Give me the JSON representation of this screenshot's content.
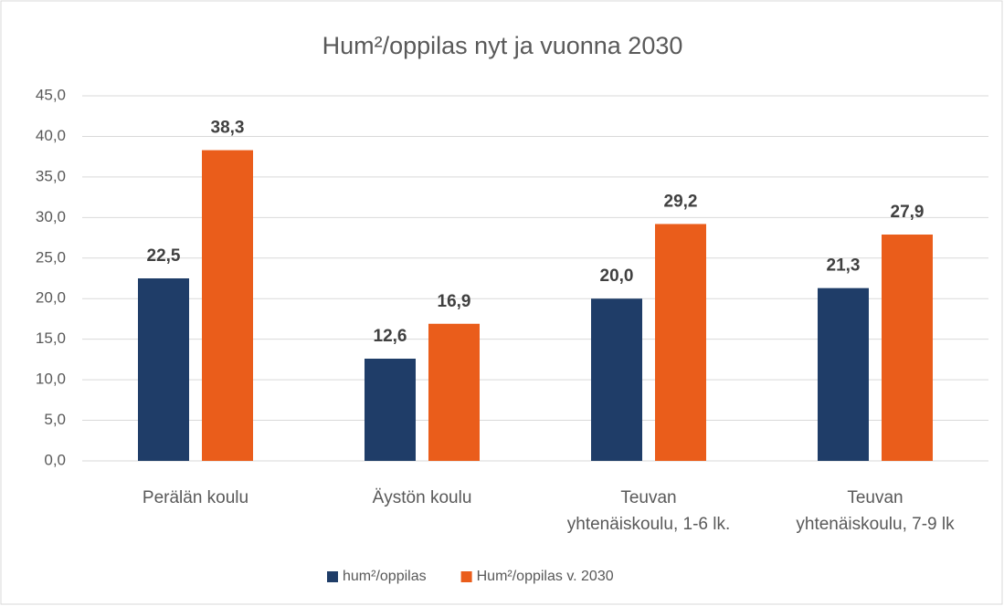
{
  "chart_data": {
    "type": "bar",
    "title": "Hum²/oppilas nyt ja vuonna 2030",
    "categories": [
      "Perälän koulu",
      "Äystön koulu",
      "Teuvan yhtenäiskoulu, 1-6 lk.",
      "Teuvan yhtenäiskoulu, 7-9 lk"
    ],
    "series": [
      {
        "name": "hum²/oppilas",
        "color": "#1f3d68",
        "values": [
          22.5,
          12.6,
          20.0,
          21.3
        ],
        "value_labels": [
          "22,5",
          "12,6",
          "20,0",
          "21,3"
        ]
      },
      {
        "name": "Hum²/oppilas v. 2030",
        "color": "#ea5d1b",
        "values": [
          38.3,
          16.9,
          29.2,
          27.9
        ],
        "value_labels": [
          "38,3",
          "16,9",
          "29,2",
          "27,9"
        ]
      }
    ],
    "ylim": [
      0,
      45
    ],
    "yticks": [
      {
        "value": 0,
        "label": "0,0"
      },
      {
        "value": 5,
        "label": "5,0"
      },
      {
        "value": 10,
        "label": "10,0"
      },
      {
        "value": 15,
        "label": "15,0"
      },
      {
        "value": 20,
        "label": "20,0"
      },
      {
        "value": 25,
        "label": "25,0"
      },
      {
        "value": 30,
        "label": "30,0"
      },
      {
        "value": 35,
        "label": "35,0"
      },
      {
        "value": 40,
        "label": "40,0"
      },
      {
        "value": 45,
        "label": "45,0"
      }
    ],
    "grid": true,
    "legend": "bottom"
  }
}
